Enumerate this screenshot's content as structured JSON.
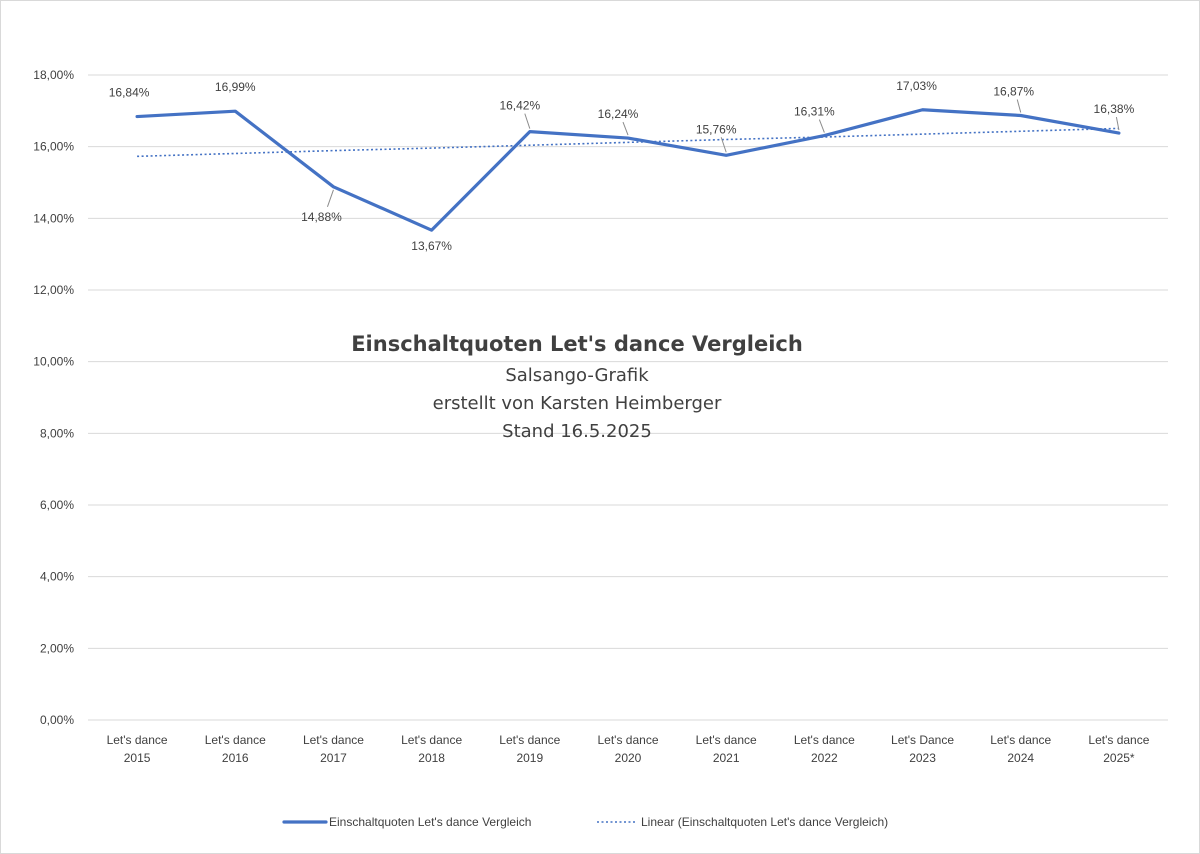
{
  "chart_data": {
    "type": "line",
    "title": "Einschaltquoten Let's dance Vergleich",
    "subtitle_lines": [
      "Salsango-Grafik",
      "erstellt von Karsten Heimberger",
      "Stand 16.5.2025"
    ],
    "categories": [
      [
        "Let's dance",
        "2015"
      ],
      [
        "Let's dance",
        "2016"
      ],
      [
        "Let's dance",
        "2017"
      ],
      [
        "Let's dance",
        "2018"
      ],
      [
        "Let's dance",
        "2019"
      ],
      [
        "Let's dance",
        "2020"
      ],
      [
        "Let's dance",
        "2021"
      ],
      [
        "Let's dance",
        "2022"
      ],
      [
        "Let's Dance",
        "2023"
      ],
      [
        "Let's dance",
        "2024"
      ],
      [
        "Let's dance",
        "2025*"
      ]
    ],
    "series": [
      {
        "name": "Einschaltquoten Let's dance Vergleich",
        "values": [
          16.84,
          16.99,
          14.88,
          13.67,
          16.42,
          16.24,
          15.76,
          16.31,
          17.03,
          16.87,
          16.38
        ],
        "data_labels": [
          "16,84%",
          "16,99%",
          "14,88%",
          "13,67%",
          "16,42%",
          "16,24%",
          "15,76%",
          "16,31%",
          "17,03%",
          "16,87%",
          "16,38%"
        ],
        "color": "#4472c4",
        "style": "solid"
      },
      {
        "name": "Linear (Einschaltquoten Let's dance Vergleich)",
        "trendline": "linear",
        "values": [
          15.73,
          15.81,
          15.89,
          15.96,
          16.04,
          16.12,
          16.2,
          16.27,
          16.35,
          16.43,
          16.51
        ],
        "color": "#4472c4",
        "style": "dotted"
      }
    ],
    "ylim": [
      0,
      18
    ],
    "yticks": [
      {
        "value": 0,
        "label": "0,00%"
      },
      {
        "value": 2,
        "label": "2,00%"
      },
      {
        "value": 4,
        "label": "4,00%"
      },
      {
        "value": 6,
        "label": "6,00%"
      },
      {
        "value": 8,
        "label": "8,00%"
      },
      {
        "value": 10,
        "label": "10,00%"
      },
      {
        "value": 12,
        "label": "12,00%"
      },
      {
        "value": 14,
        "label": "14,00%"
      },
      {
        "value": 16,
        "label": "16,00%"
      },
      {
        "value": 18,
        "label": "18,00%"
      }
    ],
    "grid": true,
    "legend": "bottom"
  }
}
